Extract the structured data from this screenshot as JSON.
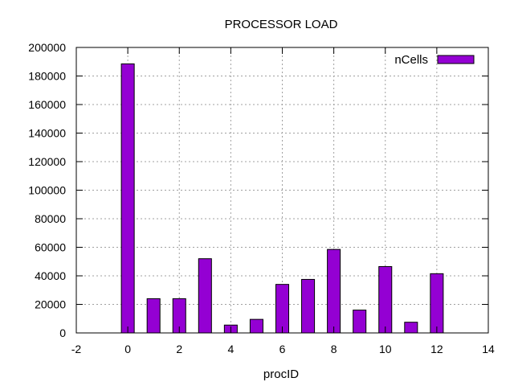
{
  "chart_data": {
    "type": "bar",
    "title": "PROCESSOR LOAD",
    "xlabel": "procID",
    "ylabel": "",
    "xlim": [
      -2,
      14
    ],
    "ylim": [
      0,
      200000
    ],
    "xticks": [
      "-2",
      "0",
      "2",
      "4",
      "6",
      "8",
      "10",
      "12",
      "14"
    ],
    "yticks": [
      "0",
      "20000",
      "40000",
      "60000",
      "80000",
      "100000",
      "120000",
      "140000",
      "160000",
      "180000",
      "200000"
    ],
    "grid": true,
    "legend_position": "top-right",
    "series": [
      {
        "name": "nCells",
        "color": "#9400d3",
        "x": [
          0,
          1,
          2,
          3,
          4,
          5,
          6,
          7,
          8,
          9,
          10,
          11,
          12
        ],
        "values": [
          188500,
          24000,
          24000,
          52000,
          5500,
          9500,
          34000,
          37500,
          58500,
          16000,
          46500,
          7500,
          41500
        ]
      }
    ]
  }
}
